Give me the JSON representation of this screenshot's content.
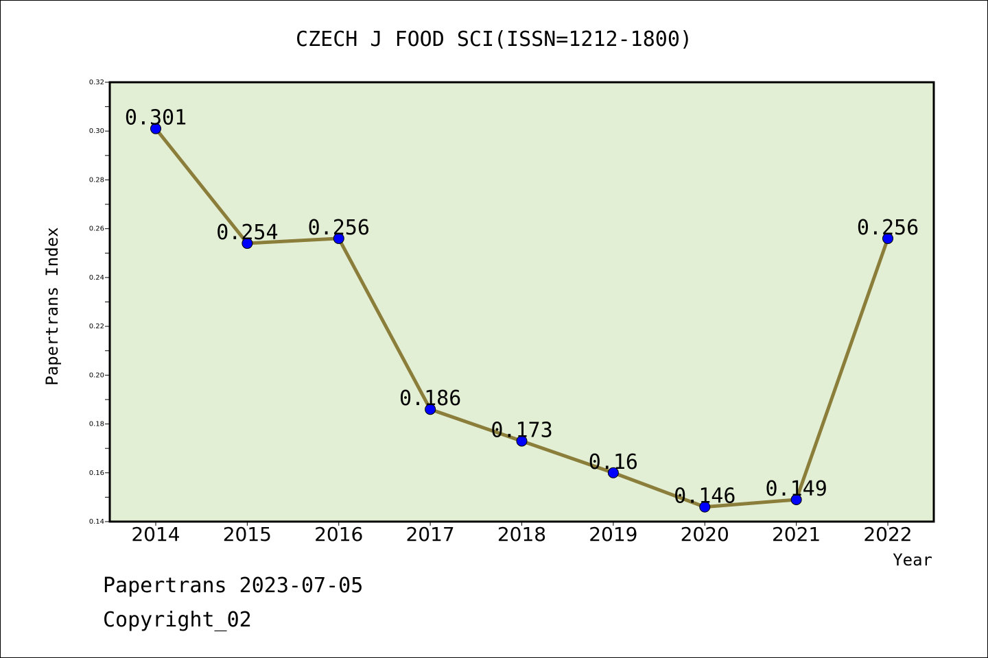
{
  "chart_data": {
    "type": "line",
    "title": "CZECH J FOOD SCI(ISSN=1212-1800)",
    "xlabel": "Year",
    "ylabel": "Papertrans Index",
    "categories": [
      "2014",
      "2015",
      "2016",
      "2017",
      "2018",
      "2019",
      "2020",
      "2021",
      "2022"
    ],
    "values": [
      0.301,
      0.254,
      0.256,
      0.186,
      0.173,
      0.16,
      0.146,
      0.149,
      0.256
    ],
    "data_labels": [
      "0.301",
      "0.254",
      "0.256",
      "0.186",
      "0.173",
      "0.16",
      "0.146",
      "0.149",
      "0.256"
    ],
    "ylim": [
      0.14,
      0.32
    ],
    "yticks": [
      "0.14",
      "0.16",
      "0.18",
      "0.20",
      "0.22",
      "0.24",
      "0.26",
      "0.28",
      "0.30",
      "0.32"
    ],
    "grid": false,
    "colors": {
      "plot_background": "#e2efd4",
      "line": "#8b7d3a",
      "marker": "#0000ff"
    }
  },
  "footer": {
    "line1": "Papertrans 2023-07-05",
    "line2": "Copyright_02"
  }
}
